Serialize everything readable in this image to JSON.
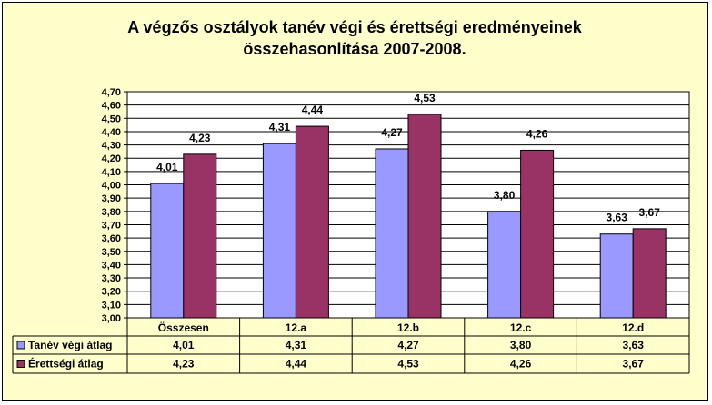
{
  "chart_data": {
    "type": "bar",
    "title_lines": [
      "A végzős osztályok tanév végi és érettségi eredményeinek",
      "összehasonlítása 2007-2008."
    ],
    "categories": [
      "Összesen",
      "12.a",
      "12.b",
      "12.c",
      "12.d"
    ],
    "series": [
      {
        "name": "Tanév végi átlag",
        "color": "#9999ff",
        "values": [
          4.01,
          4.31,
          4.27,
          3.8,
          3.63
        ],
        "labels": [
          "4,01",
          "4,31",
          "4,27",
          "3,80",
          "3,63"
        ]
      },
      {
        "name": "Érettségi átlag",
        "color": "#993366",
        "values": [
          4.23,
          4.44,
          4.53,
          4.26,
          3.67
        ],
        "labels": [
          "4,23",
          "4,44",
          "4,53",
          "4,26",
          "3,67"
        ]
      }
    ],
    "ylim": [
      3.0,
      4.7
    ],
    "ytick_step": 0.1,
    "ytick_labels": [
      "3,00",
      "3,10",
      "3,20",
      "3,30",
      "3,40",
      "3,50",
      "3,60",
      "3,70",
      "3,80",
      "3,90",
      "4,00",
      "4,10",
      "4,20",
      "4,30",
      "4,40",
      "4,50",
      "4,60",
      "4,70"
    ],
    "grid": true,
    "legend": "data-table",
    "plot_background": "#ffffff",
    "chart_background": "#ffffcc"
  }
}
